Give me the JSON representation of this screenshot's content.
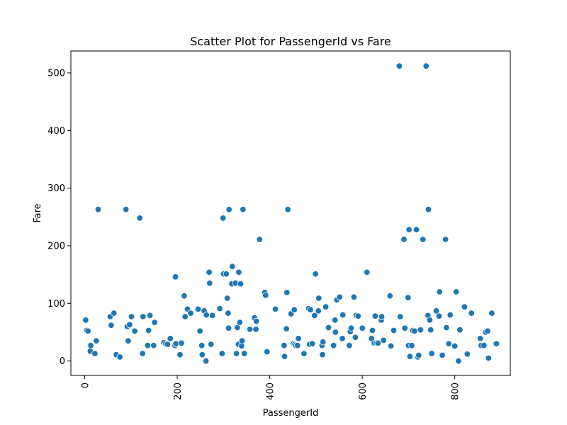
{
  "chart_data": {
    "type": "scatter",
    "title": "Scatter Plot for PassengerId vs Fare",
    "xlabel": "PassengerId",
    "ylabel": "Fare",
    "xlim": [
      -30,
      920
    ],
    "ylim": [
      -25,
      538
    ],
    "xticks": [
      0,
      200,
      400,
      600,
      800
    ],
    "yticks": [
      0,
      100,
      200,
      300,
      400,
      500
    ],
    "grid": false,
    "legend": "none",
    "point_color": "#1f77b4",
    "points": [
      [
        2,
        71
      ],
      [
        4,
        53
      ],
      [
        7,
        52
      ],
      [
        12,
        17
      ],
      [
        13,
        27
      ],
      [
        22,
        13
      ],
      [
        25,
        35
      ],
      [
        29,
        263
      ],
      [
        55,
        77
      ],
      [
        57,
        62
      ],
      [
        63,
        83
      ],
      [
        68,
        11
      ],
      [
        76,
        7
      ],
      [
        89,
        263
      ],
      [
        92,
        60
      ],
      [
        94,
        35
      ],
      [
        97,
        63
      ],
      [
        101,
        77
      ],
      [
        108,
        52
      ],
      [
        119,
        248
      ],
      [
        125,
        13
      ],
      [
        126,
        77
      ],
      [
        136,
        27
      ],
      [
        138,
        53
      ],
      [
        141,
        79
      ],
      [
        149,
        27
      ],
      [
        151,
        67
      ],
      [
        171,
        32
      ],
      [
        175,
        30
      ],
      [
        179,
        29
      ],
      [
        185,
        39
      ],
      [
        195,
        27
      ],
      [
        196,
        146
      ],
      [
        197,
        30
      ],
      [
        206,
        11
      ],
      [
        209,
        31
      ],
      [
        215,
        113
      ],
      [
        217,
        77
      ],
      [
        222,
        90
      ],
      [
        229,
        83
      ],
      [
        245,
        90
      ],
      [
        249,
        52
      ],
      [
        253,
        27
      ],
      [
        254,
        11
      ],
      [
        258,
        87
      ],
      [
        262,
        0
      ],
      [
        263,
        80
      ],
      [
        269,
        154
      ],
      [
        270,
        135
      ],
      [
        273,
        29
      ],
      [
        276,
        79
      ],
      [
        292,
        91
      ],
      [
        297,
        13
      ],
      [
        299,
        248
      ],
      [
        300,
        151
      ],
      [
        306,
        151
      ],
      [
        308,
        109
      ],
      [
        310,
        83
      ],
      [
        311,
        57
      ],
      [
        312,
        263
      ],
      [
        318,
        134
      ],
      [
        319,
        164
      ],
      [
        326,
        135
      ],
      [
        328,
        13
      ],
      [
        330,
        58
      ],
      [
        332,
        29
      ],
      [
        333,
        154
      ],
      [
        335,
        67
      ],
      [
        337,
        134
      ],
      [
        339,
        26
      ],
      [
        340,
        35
      ],
      [
        342,
        263
      ],
      [
        345,
        13
      ],
      [
        357,
        55
      ],
      [
        367,
        75
      ],
      [
        370,
        55
      ],
      [
        371,
        69
      ],
      [
        378,
        211
      ],
      [
        389,
        119
      ],
      [
        391,
        114
      ],
      [
        394,
        16
      ],
      [
        412,
        90
      ],
      [
        431,
        27
      ],
      [
        432,
        8
      ],
      [
        436,
        56
      ],
      [
        437,
        119
      ],
      [
        439,
        263
      ],
      [
        446,
        82
      ],
      [
        451,
        30
      ],
      [
        453,
        89
      ],
      [
        454,
        29
      ],
      [
        456,
        27
      ],
      [
        460,
        27
      ],
      [
        462,
        39
      ],
      [
        474,
        13
      ],
      [
        484,
        91
      ],
      [
        486,
        29
      ],
      [
        488,
        89
      ],
      [
        492,
        30
      ],
      [
        497,
        79
      ],
      [
        499,
        151
      ],
      [
        505,
        87
      ],
      [
        506,
        109
      ],
      [
        513,
        27
      ],
      [
        514,
        11
      ],
      [
        515,
        33
      ],
      [
        521,
        94
      ],
      [
        527,
        58
      ],
      [
        538,
        27
      ],
      [
        541,
        71
      ],
      [
        542,
        50
      ],
      [
        545,
        106
      ],
      [
        551,
        111
      ],
      [
        557,
        39
      ],
      [
        558,
        80
      ],
      [
        572,
        27
      ],
      [
        574,
        51
      ],
      [
        576,
        57
      ],
      [
        582,
        111
      ],
      [
        585,
        41
      ],
      [
        587,
        79
      ],
      [
        591,
        78
      ],
      [
        600,
        57
      ],
      [
        610,
        154
      ],
      [
        620,
        39
      ],
      [
        622,
        53
      ],
      [
        626,
        31
      ],
      [
        628,
        78
      ],
      [
        631,
        31
      ],
      [
        634,
        31
      ],
      [
        641,
        71
      ],
      [
        642,
        77
      ],
      [
        646,
        36
      ],
      [
        660,
        113
      ],
      [
        662,
        26
      ],
      [
        668,
        53
      ],
      [
        680,
        512
      ],
      [
        682,
        77
      ],
      [
        690,
        211
      ],
      [
        692,
        57
      ],
      [
        699,
        110
      ],
      [
        700,
        27
      ],
      [
        701,
        228
      ],
      [
        703,
        8
      ],
      [
        707,
        27
      ],
      [
        709,
        53
      ],
      [
        713,
        52
      ],
      [
        717,
        228
      ],
      [
        720,
        7
      ],
      [
        722,
        10
      ],
      [
        726,
        54
      ],
      [
        731,
        211
      ],
      [
        738,
        512
      ],
      [
        742,
        79
      ],
      [
        743,
        263
      ],
      [
        746,
        71
      ],
      [
        748,
        54
      ],
      [
        750,
        13
      ],
      [
        760,
        87
      ],
      [
        766,
        78
      ],
      [
        767,
        120
      ],
      [
        773,
        10
      ],
      [
        780,
        211
      ],
      [
        782,
        58
      ],
      [
        787,
        30
      ],
      [
        790,
        80
      ],
      [
        800,
        26
      ],
      [
        803,
        120
      ],
      [
        808,
        0
      ],
      [
        811,
        54
      ],
      [
        821,
        94
      ],
      [
        827,
        12
      ],
      [
        836,
        83
      ],
      [
        855,
        39
      ],
      [
        857,
        27
      ],
      [
        863,
        27
      ],
      [
        867,
        50
      ],
      [
        871,
        52
      ],
      [
        873,
        5
      ],
      [
        880,
        83
      ],
      [
        888,
        30
      ],
      [
        890,
        30
      ]
    ]
  }
}
